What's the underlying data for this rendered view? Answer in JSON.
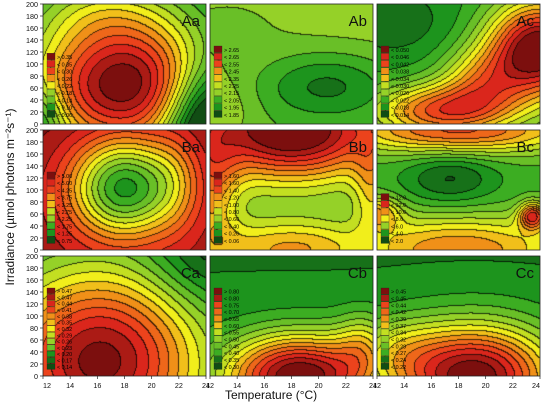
{
  "figure": {
    "x_axis_title": "Temperature (°C)",
    "y_axis_title": "Irradiance (µmol photons m⁻²s⁻¹)"
  },
  "colors": {
    "dark_green": "#114d14",
    "green": "#1fa01f",
    "light_green": "#86cc2a",
    "yellow": "#f1ee1b",
    "orange": "#f08018",
    "red": "#ea2a1e",
    "dark_red": "#7c0f0e"
  },
  "chart_data": {
    "type": "heatmap",
    "xlim": [
      12,
      24
    ],
    "ylim": [
      0,
      200
    ],
    "x_ticks": [
      "12",
      "14",
      "16",
      "18",
      "20",
      "22",
      "24"
    ],
    "y_ticks": [
      "0",
      "20",
      "40",
      "60",
      "80",
      "100",
      "120",
      "140",
      "160",
      "180",
      "200"
    ],
    "panels": [
      {
        "id": "Aa",
        "label": "Aa",
        "legend": [
          "> 0.35",
          "< 0.35",
          "< 0.30",
          "< 0.26",
          "< 0.22",
          "< 0.18",
          "< 0.14",
          "< 0.10",
          "< 0.06"
        ]
      },
      {
        "id": "Ab",
        "label": "Ab",
        "legend": [
          "> 2.65",
          "< 2.65",
          "< 2.55",
          "< 2.45",
          "< 2.35",
          "< 2.25",
          "< 2.15",
          "< 2.05",
          "< 1.95",
          "< 1.85"
        ]
      },
      {
        "id": "Ac",
        "label": "Ac",
        "legend": [
          "< 0.050",
          "< 0.046",
          "< 0.042",
          "< 0.038",
          "< 0.034",
          "< 0.030",
          "< 0.026",
          "< 0.022",
          "< 0.018",
          "< 0.014"
        ]
      },
      {
        "id": "Ba",
        "label": "Ba",
        "legend": [
          "> 5.00",
          "< 5.00",
          "< 4.25",
          "< 3.75",
          "< 3.25",
          "< 2.75",
          "< 2.25",
          "< 1.75",
          "< 1.25",
          "< 0.75"
        ]
      },
      {
        "id": "Bb",
        "label": "Bb",
        "legend": [
          "> 1.60",
          "< 1.60",
          "< 1.40",
          "< 1.20",
          "< 1.00",
          "< 0.80",
          "< 0.60",
          "< 0.40",
          "< 0.20",
          "< 0.06"
        ]
      },
      {
        "id": "Bc",
        "label": "Bc",
        "legend": [
          "> 12.0",
          "< 12.0",
          "< 10.0",
          "< 8.0",
          "< 6.0",
          "< 4.0",
          "< 2.0"
        ]
      },
      {
        "id": "Ca",
        "label": "Ca",
        "legend": [
          "> 0.47",
          "< 0.47",
          "< 0.44",
          "< 0.41",
          "< 0.38",
          "< 0.35",
          "< 0.32",
          "< 0.29",
          "< 0.26",
          "< 0.23",
          "< 0.20",
          "< 0.17",
          "< 0.14"
        ]
      },
      {
        "id": "Cb",
        "label": "Cb",
        "legend": [
          "> 0.80",
          "< 0.80",
          "< 0.75",
          "< 0.70",
          "< 0.65",
          "< 0.60",
          "< 0.55",
          "< 0.50",
          "< 0.45",
          "< 0.40",
          "< 0.35",
          "< 0.30"
        ]
      },
      {
        "id": "Cc",
        "label": "Cc",
        "legend": [
          "> 0.45",
          "< 0.45",
          "< 0.44",
          "< 0.42",
          "< 0.39",
          "< 0.37",
          "< 0.34",
          "< 0.32",
          "< 0.29",
          "< 0.27",
          "< 0.24",
          "< 0.22"
        ]
      }
    ]
  }
}
